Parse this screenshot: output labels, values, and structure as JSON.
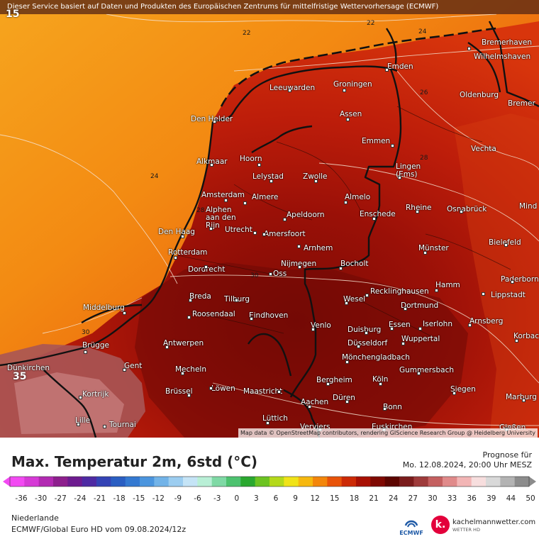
{
  "header": {
    "disclaimer": "Dieser Service basiert auf Daten und Produkten des Europäischen Zentrums für mittelfristige Wettervorhersage (ECMWF)",
    "attribution": "Map data © OpenStreetMap contributors, rendering GIScience Research Group @ Heidelberg University"
  },
  "map": {
    "corner_top_left": "15",
    "corner_bottom_left": "35",
    "isolines": [
      {
        "label": "22"
      },
      {
        "label": "22"
      },
      {
        "label": "24"
      },
      {
        "label": "26"
      },
      {
        "label": "24"
      },
      {
        "label": "28"
      },
      {
        "label": "28"
      },
      {
        "label": "30"
      },
      {
        "label": "30"
      }
    ],
    "cities": [
      {
        "name": "Bremerhaven"
      },
      {
        "name": "Wilhelmshaven"
      },
      {
        "name": "Emden"
      },
      {
        "name": "Leeuwarden"
      },
      {
        "name": "Groningen"
      },
      {
        "name": "Oldenburg"
      },
      {
        "name": "Bremer"
      },
      {
        "name": "Den Helder"
      },
      {
        "name": "Assen"
      },
      {
        "name": "Emmen"
      },
      {
        "name": "Vechta"
      },
      {
        "name": "Alkmaar"
      },
      {
        "name": "Hoorn"
      },
      {
        "name": "Lelystad"
      },
      {
        "name": "Zwolle"
      },
      {
        "name": "Lingen\n(Ems)"
      },
      {
        "name": "Amsterdam"
      },
      {
        "name": "Almere"
      },
      {
        "name": "Almelo"
      },
      {
        "name": "Alphen\naan den\nRijn"
      },
      {
        "name": "Apeldoorn"
      },
      {
        "name": "Enschede"
      },
      {
        "name": "Rheine"
      },
      {
        "name": "Osnabrück"
      },
      {
        "name": "Mind"
      },
      {
        "name": "Den Haag"
      },
      {
        "name": "Utrecht"
      },
      {
        "name": "Amersfoort"
      },
      {
        "name": "Bielefeld"
      },
      {
        "name": "Arnhem"
      },
      {
        "name": "Rotterdam"
      },
      {
        "name": "Münster"
      },
      {
        "name": "Nijmegen"
      },
      {
        "name": "Dordrecht"
      },
      {
        "name": "Oss"
      },
      {
        "name": "Bocholt"
      },
      {
        "name": "Paderborn"
      },
      {
        "name": "Hamm"
      },
      {
        "name": "Recklinghausen"
      },
      {
        "name": "Lippstadt"
      },
      {
        "name": "Breda"
      },
      {
        "name": "Tilburg"
      },
      {
        "name": "Wesel"
      },
      {
        "name": "Dortmund"
      },
      {
        "name": "Middelburg"
      },
      {
        "name": "Roosendaal"
      },
      {
        "name": "Eindhoven"
      },
      {
        "name": "Arnsberg"
      },
      {
        "name": "Essen"
      },
      {
        "name": "Iserlohn"
      },
      {
        "name": "Venlo"
      },
      {
        "name": "Duisburg"
      },
      {
        "name": "Korbac"
      },
      {
        "name": "Wuppertal"
      },
      {
        "name": "Antwerpen"
      },
      {
        "name": "Brügge"
      },
      {
        "name": "Düsseldorf"
      },
      {
        "name": "Mönchengladbach"
      },
      {
        "name": "Dünkirchen"
      },
      {
        "name": "Gent"
      },
      {
        "name": "Mecheln"
      },
      {
        "name": "Gummersbach"
      },
      {
        "name": "Bergheim"
      },
      {
        "name": "Köln"
      },
      {
        "name": "Siegen"
      },
      {
        "name": "Brüssel"
      },
      {
        "name": "Löwen"
      },
      {
        "name": "Maastricht"
      },
      {
        "name": "Kortrijk"
      },
      {
        "name": "Düren"
      },
      {
        "name": "Marburg"
      },
      {
        "name": "Aachen"
      },
      {
        "name": "Bonn"
      },
      {
        "name": "Lüttich"
      },
      {
        "name": "Lille"
      },
      {
        "name": "Tournai"
      },
      {
        "name": "Gießen"
      },
      {
        "name": "Verviers"
      },
      {
        "name": "Euskirchen"
      }
    ]
  },
  "footer": {
    "title": "Max. Temperatur 2m, 6std (°C)",
    "forecast_label": "Prognose für",
    "forecast_time": "Mo. 12.08.2024, 20:00 Uhr MESZ",
    "region": "Niederlande",
    "model": "ECMWF/Global Euro HD vom  09.08.2024/12z",
    "ecmwf_logo_text": "ECMWF",
    "brand_name": "kachelmannwetter.com",
    "brand_sub": "WETTER HD",
    "brand_logo_letter": "k."
  },
  "scale": {
    "ticks": [
      "-36",
      "-30",
      "-27",
      "-24",
      "-21",
      "-18",
      "-15",
      "-12",
      "-9",
      "-6",
      "-3",
      "0",
      "3",
      "6",
      "9",
      "12",
      "15",
      "18",
      "21",
      "24",
      "27",
      "30",
      "33",
      "36",
      "39",
      "44",
      "50"
    ],
    "colors": [
      "#f24af2",
      "#d63ad6",
      "#b22ab2",
      "#8d1f8d",
      "#6d1b8f",
      "#4e2aa3",
      "#3443b5",
      "#2a5ec2",
      "#3479d1",
      "#4b95de",
      "#72b3e8",
      "#9ccdf0",
      "#c5e4f6",
      "#b9efd6",
      "#7fd9a5",
      "#4dc26f",
      "#2aa82f",
      "#6cc321",
      "#b4d91a",
      "#f0e318",
      "#f6b80f",
      "#f3860b",
      "#e85309",
      "#cc2a06",
      "#a81004",
      "#7f0903",
      "#5c0501",
      "#7a1c1c",
      "#9e3b3b",
      "#c46060",
      "#e08a8a",
      "#f2b5b5",
      "#f7dede",
      "#d9d9d9",
      "#b3b3b3",
      "#8c8c8c"
    ]
  },
  "colors": {
    "hot_dark": "#6e0a05",
    "hot": "#a51208",
    "warm": "#d42a0c",
    "sea_orange": "#f07a10",
    "sea_light": "#f6a51e"
  }
}
